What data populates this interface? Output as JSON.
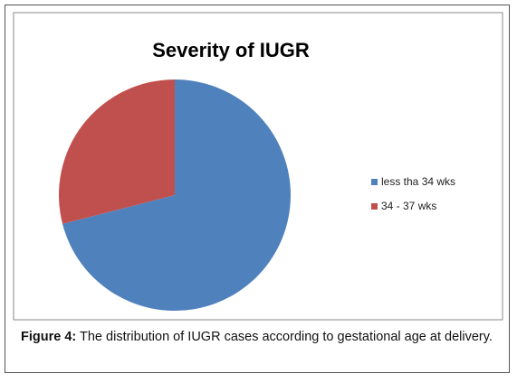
{
  "chart_data": {
    "type": "pie",
    "title": "Severity of IUGR",
    "series": [
      {
        "name": "less tha 34 wks",
        "color": "#4f81bd",
        "values": [
          71
        ]
      },
      {
        "name": "34 - 37 wks",
        "color": "#c0504d",
        "values": [
          29
        ]
      }
    ],
    "legend": "right"
  },
  "caption": {
    "label": "Figure 4:",
    "text": "The distribution of IUGR cases according to gestational age at delivery."
  }
}
